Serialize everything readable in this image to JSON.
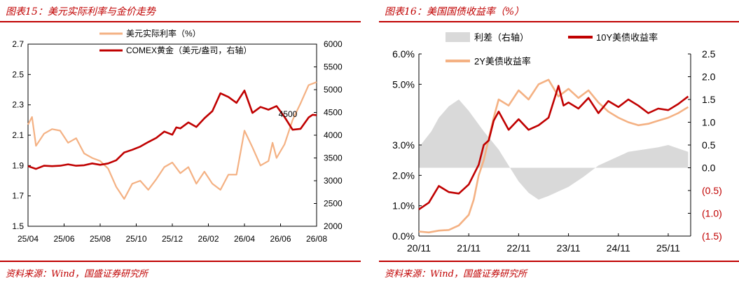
{
  "left": {
    "figure_title": "图表15：美元实际利率与金价走势",
    "source": "资料来源：Wind，国盛证券研究所"
  },
  "right": {
    "figure_title": "图表16：美国国债收益率（%）",
    "source": "资料来源：Wind，国盛证券研究所"
  },
  "colors": {
    "accent": "#c00000",
    "real_rate": "#f4b183",
    "gold": "#c00000",
    "spread": "#d9d9d9",
    "y10": "#c00000",
    "y2": "#f4b183"
  },
  "chart_data": [
    {
      "type": "line",
      "title": "",
      "x_tick_labels": [
        "25/04",
        "25/06",
        "25/08",
        "25/10",
        "25/12",
        "26/02",
        "26/04",
        "26/06",
        "26/08"
      ],
      "y_left": {
        "label": "",
        "range": [
          1.5,
          2.7
        ],
        "ticks": [
          "1.5",
          "1.7",
          "1.9",
          "2.1",
          "2.3",
          "2.5",
          "2.7"
        ]
      },
      "y_right": {
        "label": "",
        "range": [
          2000,
          6000
        ],
        "ticks": [
          "2000",
          "2500",
          "3000",
          "3500",
          "4000",
          "4500",
          "5000",
          "5500",
          "6000"
        ]
      },
      "legend_placement": "top",
      "series": [
        {
          "name": "美元实际利率（%）",
          "axis": "left",
          "x": [
            0,
            0.5,
            1,
            2,
            3,
            4,
            5,
            6,
            7,
            8,
            9,
            10,
            11,
            12,
            13,
            14,
            15,
            16,
            17,
            18,
            19,
            20,
            21,
            22,
            23,
            24,
            25,
            26,
            27,
            28,
            29,
            30,
            30.5,
            31,
            32,
            33,
            34,
            35,
            36
          ],
          "values": [
            2.17,
            2.22,
            2.03,
            2.11,
            2.14,
            2.13,
            2.05,
            2.08,
            1.98,
            1.95,
            1.93,
            1.88,
            1.76,
            1.68,
            1.78,
            1.8,
            1.74,
            1.81,
            1.89,
            1.92,
            1.85,
            1.89,
            1.78,
            1.86,
            1.78,
            1.74,
            1.84,
            1.84,
            2.13,
            2.02,
            1.9,
            1.93,
            2.05,
            1.95,
            2.04,
            2.2,
            2.31,
            2.43,
            2.45
          ]
        },
        {
          "name": "COMEX黄金（美元/盎司，右轴）",
          "axis": "right",
          "x": [
            0,
            1,
            2,
            3,
            4,
            5,
            6,
            7,
            8,
            9,
            10,
            11,
            12,
            13,
            14,
            15,
            16,
            17,
            18,
            18.5,
            19,
            20,
            21,
            22,
            23,
            24,
            25,
            26,
            27,
            28,
            29,
            30,
            31,
            32,
            33,
            34,
            35,
            35.5,
            36
          ],
          "values": [
            3320,
            3260,
            3330,
            3320,
            3330,
            3360,
            3330,
            3340,
            3380,
            3350,
            3380,
            3450,
            3620,
            3680,
            3750,
            3850,
            3940,
            4080,
            4010,
            4170,
            4150,
            4280,
            4180,
            4370,
            4530,
            4920,
            4840,
            4710,
            4980,
            4490,
            4620,
            4560,
            4640,
            4400,
            4120,
            4140,
            4390,
            4450,
            4440
          ]
        }
      ],
      "annotations": [
        "4500"
      ]
    },
    {
      "type": "line",
      "title": "",
      "x_tick_labels": [
        "20/11",
        "21/11",
        "22/11",
        "23/11",
        "24/11",
        "25/11"
      ],
      "y_left": {
        "label": "",
        "range": [
          0.0,
          6.0
        ],
        "ticks": [
          "0.0%",
          "1.0%",
          "2.0%",
          "3.0%",
          "5.0%",
          "6.0%"
        ]
      },
      "y_right": {
        "label": "",
        "range": [
          -1.5,
          2.5
        ],
        "ticks": [
          "(1.5)",
          "(1.0)",
          "(0.5)",
          "0.0",
          "0.5",
          "1.0",
          "1.5",
          "2.0",
          "2.5"
        ]
      },
      "legend_placement": "top",
      "series": [
        {
          "name": "利差（右轴）",
          "axis": "right",
          "type": "area",
          "x": [
            0,
            0.25,
            0.4,
            0.6,
            0.8,
            1.0,
            1.3,
            1.6,
            1.8,
            2.0,
            2.2,
            2.4,
            2.6,
            2.8,
            3.0,
            3.3,
            3.6,
            3.9,
            4.2,
            4.5,
            4.8,
            5.0,
            5.4
          ],
          "values": [
            0.45,
            0.8,
            1.1,
            1.35,
            1.5,
            1.25,
            0.8,
            0.4,
            0.05,
            -0.3,
            -0.55,
            -0.7,
            -0.62,
            -0.52,
            -0.42,
            -0.2,
            0.05,
            0.2,
            0.35,
            0.4,
            0.45,
            0.5,
            0.35
          ]
        },
        {
          "name": "10Y美债收益率",
          "axis": "left",
          "x": [
            0,
            0.2,
            0.4,
            0.6,
            0.8,
            1.0,
            1.2,
            1.3,
            1.4,
            1.5,
            1.6,
            1.8,
            2.0,
            2.2,
            2.4,
            2.6,
            2.8,
            2.9,
            3.0,
            3.2,
            3.4,
            3.6,
            3.8,
            4.0,
            4.2,
            4.4,
            4.6,
            4.8,
            5.0,
            5.2,
            5.4
          ],
          "values": [
            0.88,
            1.1,
            1.65,
            1.45,
            1.4,
            1.7,
            2.35,
            3.0,
            3.15,
            3.8,
            4.1,
            3.5,
            3.85,
            3.5,
            3.65,
            3.9,
            4.95,
            4.3,
            4.4,
            4.2,
            4.55,
            4.05,
            4.45,
            4.25,
            4.5,
            4.3,
            4.05,
            4.2,
            4.15,
            4.35,
            4.6
          ]
        },
        {
          "name": "2Y美债收益率",
          "axis": "left",
          "x": [
            0,
            0.2,
            0.4,
            0.6,
            0.8,
            1.0,
            1.1,
            1.2,
            1.3,
            1.4,
            1.5,
            1.6,
            1.8,
            2.0,
            2.2,
            2.4,
            2.6,
            2.8,
            3.0,
            3.2,
            3.4,
            3.6,
            3.8,
            4.0,
            4.2,
            4.4,
            4.6,
            4.8,
            5.0,
            5.2,
            5.4
          ],
          "values": [
            0.15,
            0.12,
            0.18,
            0.2,
            0.35,
            0.7,
            1.2,
            2.0,
            2.5,
            3.2,
            3.9,
            4.5,
            4.3,
            4.8,
            4.5,
            5.0,
            5.15,
            4.6,
            4.85,
            4.55,
            4.8,
            4.4,
            4.1,
            3.9,
            3.75,
            3.65,
            3.7,
            3.8,
            3.9,
            4.05,
            4.25
          ]
        }
      ]
    }
  ]
}
